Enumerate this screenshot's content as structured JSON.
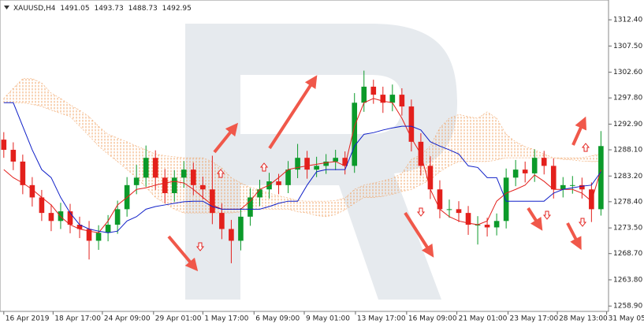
{
  "header": {
    "symbol": "XAUUSD,H4",
    "ohlc": [
      1491.05,
      1493.73,
      1488.73,
      1492.95
    ]
  },
  "chart_data": {
    "type": "candlestick",
    "up_color": "#0b9a2a",
    "down_color": "#e3201c",
    "ylim": [
      1257.9,
      1316.1
    ],
    "yticks": [
      {
        "value": 1312.4,
        "label": "1312.40"
      },
      {
        "value": 1307.5,
        "label": "1307.50"
      },
      {
        "value": 1302.6,
        "label": "1302.60"
      },
      {
        "value": 1297.8,
        "label": "1297.80"
      },
      {
        "value": 1292.9,
        "label": "1292.90"
      },
      {
        "value": 1288.1,
        "label": "1288.10"
      },
      {
        "value": 1283.2,
        "label": "1283.20"
      },
      {
        "value": 1278.4,
        "label": "1278.40"
      },
      {
        "value": 1273.5,
        "label": "1273.50"
      },
      {
        "value": 1268.7,
        "label": "1268.70"
      },
      {
        "value": 1263.8,
        "label": "1263.80"
      },
      {
        "value": 1258.9,
        "label": "1258.90"
      }
    ],
    "xlim": [
      -0.4,
      63.8
    ],
    "xticks": [
      {
        "value": 0,
        "label": "16 Apr 2019"
      },
      {
        "value": 5.2,
        "label": "18 Apr 17:00"
      },
      {
        "value": 10.4,
        "label": "24 Apr 09:00"
      },
      {
        "value": 15.8,
        "label": "29 Apr 01:00"
      },
      {
        "value": 21,
        "label": "1 May 17:00"
      },
      {
        "value": 26.4,
        "label": "6 May 09:00"
      },
      {
        "value": 31.7,
        "label": "9 May 01:00"
      },
      {
        "value": 37.1,
        "label": "13 May 17:00"
      },
      {
        "value": 42.5,
        "label": "16 May 09:00"
      },
      {
        "value": 47.8,
        "label": "21 May 01:00"
      },
      {
        "value": 53.2,
        "label": "23 May 17:00"
      },
      {
        "value": 58.4,
        "label": "28 May 13:00"
      },
      {
        "value": 63.6,
        "label": "31 May 05:00"
      }
    ],
    "open": [
      1290.0,
      1288.1,
      1285.9,
      1281.5,
      1279.2,
      1276.3,
      1274.8,
      1276.6,
      1274.1,
      1273.3,
      1271.1,
      1272.6,
      1274.1,
      1277.0,
      1281.5,
      1282.9,
      1286.6,
      1282.9,
      1280.0,
      1282.9,
      1284.4,
      1281.5,
      1280.7,
      1276.3,
      1273.3,
      1271.1,
      1275.6,
      1279.2,
      1280.7,
      1282.2,
      1281.5,
      1284.4,
      1286.6,
      1284.4,
      1285.1,
      1285.9,
      1286.6,
      1285.1,
      1296.9,
      1299.9,
      1298.4,
      1296.9,
      1298.4,
      1296.2,
      1289.6,
      1285.1,
      1280.7,
      1277.0,
      1277.0,
      1276.3,
      1274.1,
      1274.1,
      1273.6,
      1274.8,
      1282.9,
      1284.4,
      1283.7,
      1286.6,
      1285.1,
      1280.7,
      1281.5,
      1281.5,
      1280.7,
      1277.0
    ],
    "high": [
      1291.4,
      1289.5,
      1287.2,
      1283.0,
      1280.6,
      1277.9,
      1278.2,
      1278.0,
      1275.6,
      1274.8,
      1274.0,
      1275.9,
      1278.6,
      1283.0,
      1285.3,
      1288.9,
      1288.0,
      1284.5,
      1284.3,
      1286.0,
      1285.7,
      1283.1,
      1287.0,
      1278.1,
      1275.0,
      1277.2,
      1280.9,
      1282.5,
      1283.8,
      1283.6,
      1286.0,
      1289.2,
      1287.9,
      1286.8,
      1287.3,
      1288.1,
      1287.8,
      1298.7,
      1302.9,
      1301.2,
      1299.9,
      1300.3,
      1299.6,
      1297.5,
      1291.2,
      1286.9,
      1282.4,
      1278.8,
      1278.5,
      1277.6,
      1275.7,
      1275.4,
      1276.2,
      1284.6,
      1286.2,
      1285.9,
      1288.2,
      1287.9,
      1286.5,
      1283.0,
      1283.2,
      1282.9,
      1282.0,
      1291.6
    ],
    "low": [
      1286.6,
      1284.3,
      1279.8,
      1277.5,
      1274.8,
      1272.9,
      1273.3,
      1272.5,
      1271.6,
      1267.6,
      1269.4,
      1271.0,
      1272.4,
      1275.6,
      1279.8,
      1281.2,
      1280.6,
      1278.1,
      1278.4,
      1281.0,
      1279.6,
      1278.9,
      1274.2,
      1271.4,
      1266.9,
      1269.3,
      1273.9,
      1277.6,
      1279.0,
      1279.8,
      1280.0,
      1282.8,
      1282.7,
      1283.0,
      1283.6,
      1284.3,
      1283.5,
      1283.8,
      1295.2,
      1296.7,
      1295.0,
      1295.3,
      1294.5,
      1287.8,
      1283.3,
      1278.9,
      1275.3,
      1275.4,
      1274.6,
      1272.2,
      1270.4,
      1271.9,
      1272.1,
      1273.4,
      1281.3,
      1282.0,
      1282.1,
      1283.5,
      1279.0,
      1279.2,
      1279.9,
      1279.0,
      1274.6,
      1275.8
    ],
    "close": [
      1288.1,
      1285.9,
      1281.5,
      1279.2,
      1276.3,
      1274.8,
      1276.6,
      1274.1,
      1273.3,
      1271.1,
      1272.6,
      1274.1,
      1277.0,
      1281.5,
      1282.9,
      1286.6,
      1282.9,
      1280.0,
      1282.9,
      1284.4,
      1281.5,
      1280.7,
      1276.3,
      1273.3,
      1271.1,
      1275.6,
      1279.2,
      1280.7,
      1282.2,
      1281.5,
      1284.4,
      1286.6,
      1284.4,
      1285.1,
      1285.9,
      1286.6,
      1285.1,
      1296.9,
      1299.9,
      1298.4,
      1296.9,
      1298.4,
      1296.2,
      1289.6,
      1285.1,
      1280.7,
      1277.0,
      1277.0,
      1276.3,
      1274.1,
      1274.1,
      1273.6,
      1274.8,
      1282.9,
      1284.4,
      1283.7,
      1286.6,
      1285.1,
      1280.7,
      1281.5,
      1281.5,
      1280.7,
      1277.0,
      1288.8
    ],
    "lines": [
      {
        "color": "#e3201c",
        "values": [
          1284.4,
          1282.9,
          1281.9,
          1280.7,
          1279.2,
          1277.8,
          1275.6,
          1274.1,
          1273.3,
          1272.9,
          1272.6,
          1274.8,
          1277.8,
          1279.2,
          1280.7,
          1281.0,
          1281.5,
          1281.9,
          1282.2,
          1281.9,
          1280.7,
          1279.2,
          1277.8,
          1277.0,
          1277.0,
          1277.0,
          1278.5,
          1280.7,
          1281.5,
          1282.9,
          1284.4,
          1284.8,
          1285.1,
          1285.4,
          1285.7,
          1285.9,
          1285.1,
          1292.5,
          1296.9,
          1297.7,
          1297.2,
          1296.9,
          1294.0,
          1290.3,
          1287.3,
          1280.7,
          1277.0,
          1275.6,
          1274.8,
          1274.4,
          1274.1,
          1274.8,
          1278.5,
          1280.0,
          1280.7,
          1281.5,
          1283.4,
          1282.2,
          1280.7,
          1280.7,
          1280.7,
          1280.0,
          1278.5,
          1284.4
        ]
      },
      {
        "color": "#1020c8",
        "values": [
          1296.9,
          1296.9,
          1292.5,
          1288.1,
          1284.4,
          1282.9,
          1279.2,
          1276.3,
          1274.1,
          1273.3,
          1272.9,
          1272.6,
          1272.9,
          1274.8,
          1275.6,
          1277.0,
          1277.5,
          1277.8,
          1278.1,
          1278.4,
          1278.5,
          1278.5,
          1277.5,
          1277.0,
          1277.0,
          1277.0,
          1277.0,
          1277.0,
          1277.5,
          1278.1,
          1278.5,
          1278.5,
          1281.5,
          1284.0,
          1284.4,
          1284.4,
          1284.4,
          1288.8,
          1291.0,
          1291.3,
          1291.8,
          1292.2,
          1292.5,
          1292.5,
          1291.8,
          1289.6,
          1288.8,
          1288.1,
          1287.3,
          1285.1,
          1284.8,
          1282.9,
          1282.9,
          1278.5,
          1278.5,
          1278.5,
          1278.5,
          1278.5,
          1280.0,
          1280.7,
          1281.0,
          1281.3,
          1281.5,
          1284.0
        ]
      }
    ],
    "cloud": {
      "color": "#f0a060",
      "upper": [
        1297.7,
        1299.6,
        1301.4,
        1301.4,
        1300.6,
        1298.7,
        1297.7,
        1296.5,
        1295.5,
        1294.3,
        1292.5,
        1291.0,
        1290.3,
        1289.6,
        1288.8,
        1288.1,
        1287.3,
        1287.0,
        1286.8,
        1286.6,
        1286.6,
        1286.6,
        1285.9,
        1284.7,
        1282.9,
        1281.9,
        1281.1,
        1280.6,
        1280.0,
        1279.5,
        1279.1,
        1278.6,
        1278.5,
        1278.5,
        1278.5,
        1278.6,
        1279.1,
        1280.7,
        1281.5,
        1281.9,
        1282.3,
        1282.8,
        1283.7,
        1286.3,
        1287.2,
        1288.8,
        1292.2,
        1294.0,
        1294.7,
        1294.3,
        1294.0,
        1295.2,
        1294.0,
        1291.0,
        1289.6,
        1288.7,
        1288.1,
        1287.3,
        1286.6,
        1286.6,
        1286.6,
        1286.6,
        1287.0,
        1287.3
      ],
      "lower": [
        1296.9,
        1296.9,
        1296.9,
        1296.6,
        1296.2,
        1295.5,
        1294.9,
        1294.3,
        1292.5,
        1290.7,
        1288.8,
        1287.3,
        1285.9,
        1284.4,
        1282.9,
        1281.1,
        1279.2,
        1278.1,
        1277.0,
        1276.3,
        1276.3,
        1276.3,
        1276.3,
        1276.3,
        1276.3,
        1276.5,
        1276.9,
        1277.0,
        1277.0,
        1277.0,
        1277.0,
        1276.5,
        1276.3,
        1275.8,
        1275.6,
        1276.0,
        1276.9,
        1278.1,
        1279.2,
        1279.2,
        1279.4,
        1279.8,
        1280.3,
        1280.7,
        1281.6,
        1282.5,
        1284.0,
        1285.1,
        1285.9,
        1285.9,
        1285.9,
        1285.9,
        1286.2,
        1286.6,
        1286.6,
        1286.6,
        1286.6,
        1286.6,
        1286.6,
        1286.3,
        1286.2,
        1286.0,
        1285.9,
        1285.9
      ]
    }
  }
}
